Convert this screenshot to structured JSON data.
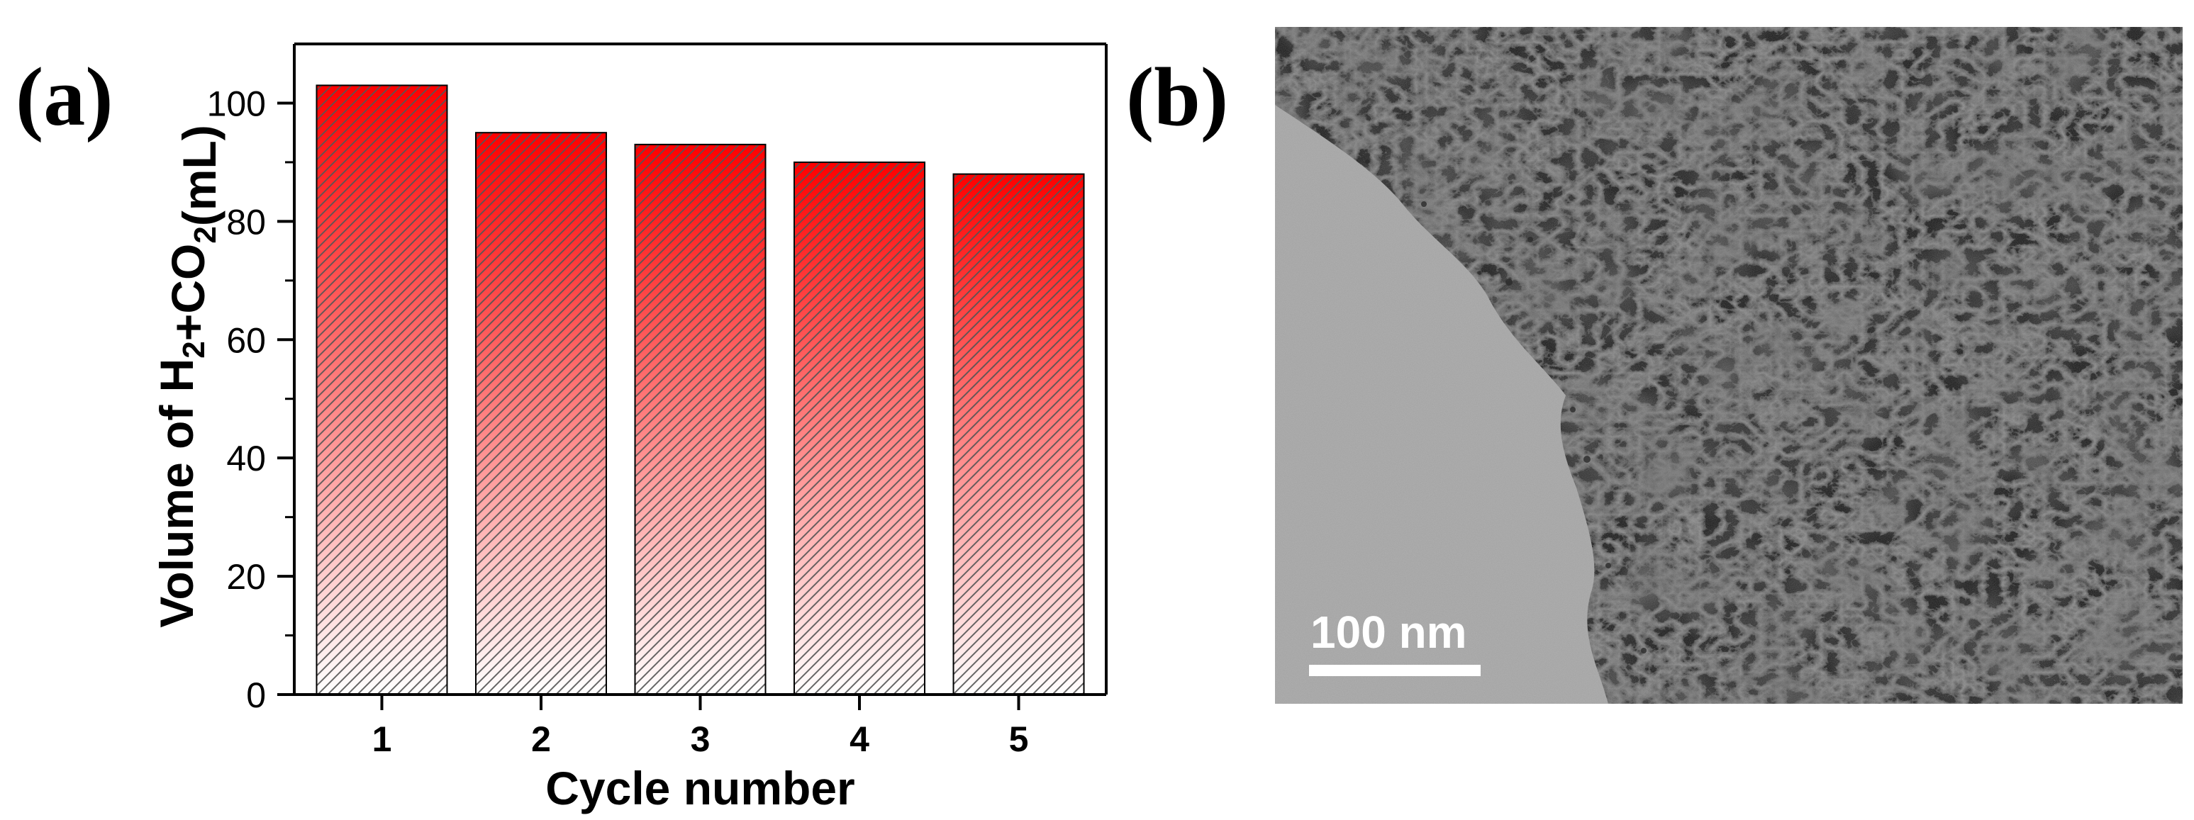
{
  "panels": {
    "a_label": "(a)",
    "b_label": "(b)"
  },
  "chart_data": {
    "type": "bar",
    "title": "",
    "categories": [
      "1",
      "2",
      "3",
      "4",
      "5"
    ],
    "values": [
      103,
      95,
      93,
      90,
      88
    ],
    "xlabel": "Cycle number",
    "ylabel_parts": {
      "prefix": "Volume of H",
      "sub1": "2",
      "middle": "+CO",
      "sub2": "2",
      "suffix": "(mL)"
    },
    "ylim": [
      0,
      110
    ],
    "yticks": [
      0,
      20,
      40,
      60,
      80,
      100
    ],
    "grid": false,
    "legend": "none",
    "bar_fill": "gradient red (top) to white (bottom) with diagonal hatching",
    "colors": {
      "bar_top": "#ff0000",
      "bar_bottom": "#ffffff",
      "hatch": "#555555",
      "axis": "#000000"
    }
  },
  "tem_image": {
    "scale_bar_label": "100 nm"
  }
}
